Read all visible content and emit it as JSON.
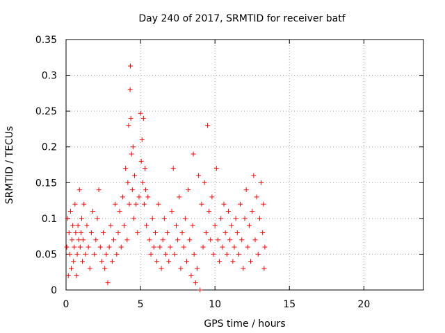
{
  "chart_data": {
    "type": "scatter",
    "title": "Day 240 of 2017, SRMTID for receiver batf",
    "xlabel": "GPS time / hours",
    "ylabel": "SRMTID / TECUs",
    "xlim": [
      0,
      24
    ],
    "ylim": [
      0,
      0.35
    ],
    "xticks": [
      0,
      5,
      10,
      15,
      20
    ],
    "xtick_labels": [
      "0",
      "5",
      "10",
      "15",
      "20"
    ],
    "yticks": [
      0,
      0.05,
      0.1,
      0.15,
      0.2,
      0.25,
      0.3,
      0.35
    ],
    "ytick_labels": [
      "0",
      "0.05",
      "0.1",
      "0.15",
      "0.2",
      "0.25",
      "0.3",
      "0.35"
    ],
    "grid": true,
    "marker": "+",
    "color": "#ff0000",
    "series": [
      {
        "name": "SRMTID",
        "points": [
          [
            0.05,
            0.06
          ],
          [
            0.1,
            0.1
          ],
          [
            0.15,
            0.02
          ],
          [
            0.2,
            0.08
          ],
          [
            0.25,
            0.05
          ],
          [
            0.3,
            0.11
          ],
          [
            0.35,
            0.03
          ],
          [
            0.4,
            0.07
          ],
          [
            0.45,
            0.09
          ],
          [
            0.5,
            0.04
          ],
          [
            0.55,
            0.06
          ],
          [
            0.6,
            0.12
          ],
          [
            0.65,
            0.08
          ],
          [
            0.7,
            0.02
          ],
          [
            0.75,
            0.05
          ],
          [
            0.8,
            0.09
          ],
          [
            0.85,
            0.07
          ],
          [
            0.9,
            0.14
          ],
          [
            0.95,
            0.06
          ],
          [
            1.0,
            0.08
          ],
          [
            1.05,
            0.1
          ],
          [
            1.1,
            0.04
          ],
          [
            1.15,
            0.07
          ],
          [
            1.2,
            0.12
          ],
          [
            1.3,
            0.05
          ],
          [
            1.4,
            0.09
          ],
          [
            1.5,
            0.06
          ],
          [
            1.6,
            0.03
          ],
          [
            1.7,
            0.08
          ],
          [
            1.8,
            0.11
          ],
          [
            1.9,
            0.05
          ],
          [
            2.0,
            0.07
          ],
          [
            2.1,
            0.1
          ],
          [
            2.2,
            0.14
          ],
          [
            2.3,
            0.06
          ],
          [
            2.4,
            0.04
          ],
          [
            2.5,
            0.08
          ],
          [
            2.6,
            0.03
          ],
          [
            2.7,
            0.05
          ],
          [
            2.8,
            0.01
          ],
          [
            2.9,
            0.06
          ],
          [
            3.0,
            0.09
          ],
          [
            3.1,
            0.04
          ],
          [
            3.2,
            0.07
          ],
          [
            3.3,
            0.12
          ],
          [
            3.4,
            0.05
          ],
          [
            3.5,
            0.08
          ],
          [
            3.6,
            0.11
          ],
          [
            3.7,
            0.06
          ],
          [
            3.8,
            0.13
          ],
          [
            3.9,
            0.09
          ],
          [
            4.0,
            0.17
          ],
          [
            4.1,
            0.07
          ],
          [
            4.15,
            0.15
          ],
          [
            4.2,
            0.23
          ],
          [
            4.25,
            0.12
          ],
          [
            4.3,
            0.28
          ],
          [
            4.32,
            0.313
          ],
          [
            4.35,
            0.24
          ],
          [
            4.4,
            0.19
          ],
          [
            4.45,
            0.14
          ],
          [
            4.5,
            0.2
          ],
          [
            4.55,
            0.1
          ],
          [
            4.6,
            0.16
          ],
          [
            4.7,
            0.12
          ],
          [
            4.8,
            0.08
          ],
          [
            4.9,
            0.13
          ],
          [
            5.0,
            0.247
          ],
          [
            5.05,
            0.18
          ],
          [
            5.1,
            0.21
          ],
          [
            5.15,
            0.15
          ],
          [
            5.2,
            0.24
          ],
          [
            5.25,
            0.12
          ],
          [
            5.3,
            0.17
          ],
          [
            5.35,
            0.14
          ],
          [
            5.4,
            0.09
          ],
          [
            5.5,
            0.13
          ],
          [
            5.6,
            0.07
          ],
          [
            5.7,
            0.05
          ],
          [
            5.8,
            0.1
          ],
          [
            5.9,
            0.06
          ],
          [
            6.0,
            0.08
          ],
          [
            6.1,
            0.04
          ],
          [
            6.2,
            0.12
          ],
          [
            6.3,
            0.06
          ],
          [
            6.4,
            0.03
          ],
          [
            6.5,
            0.07
          ],
          [
            6.6,
            0.1
          ],
          [
            6.7,
            0.05
          ],
          [
            6.8,
            0.08
          ],
          [
            6.9,
            0.04
          ],
          [
            7.0,
            0.06
          ],
          [
            7.1,
            0.11
          ],
          [
            7.2,
            0.17
          ],
          [
            7.3,
            0.05
          ],
          [
            7.4,
            0.09
          ],
          [
            7.5,
            0.07
          ],
          [
            7.6,
            0.13
          ],
          [
            7.7,
            0.03
          ],
          [
            7.8,
            0.08
          ],
          [
            7.9,
            0.06
          ],
          [
            8.0,
            0.1
          ],
          [
            8.1,
            0.04
          ],
          [
            8.2,
            0.14
          ],
          [
            8.3,
            0.07
          ],
          [
            8.4,
            0.02
          ],
          [
            8.5,
            0.09
          ],
          [
            8.55,
            0.19
          ],
          [
            8.6,
            0.05
          ],
          [
            8.7,
            0.01
          ],
          [
            8.8,
            0.03
          ],
          [
            8.9,
            0.16
          ],
          [
            9.0,
            0.0
          ],
          [
            9.1,
            0.12
          ],
          [
            9.2,
            0.06
          ],
          [
            9.3,
            0.15
          ],
          [
            9.4,
            0.08
          ],
          [
            9.5,
            0.23
          ],
          [
            9.6,
            0.11
          ],
          [
            9.7,
            0.07
          ],
          [
            9.8,
            0.13
          ],
          [
            9.9,
            0.05
          ],
          [
            10.0,
            0.09
          ],
          [
            10.1,
            0.17
          ],
          [
            10.2,
            0.07
          ],
          [
            10.3,
            0.04
          ],
          [
            10.4,
            0.1
          ],
          [
            10.5,
            0.06
          ],
          [
            10.6,
            0.12
          ],
          [
            10.7,
            0.08
          ],
          [
            10.8,
            0.05
          ],
          [
            10.9,
            0.11
          ],
          [
            11.0,
            0.07
          ],
          [
            11.1,
            0.09
          ],
          [
            11.2,
            0.04
          ],
          [
            11.3,
            0.06
          ],
          [
            11.4,
            0.1
          ],
          [
            11.5,
            0.08
          ],
          [
            11.6,
            0.05
          ],
          [
            11.7,
            0.12
          ],
          [
            11.8,
            0.07
          ],
          [
            11.9,
            0.03
          ],
          [
            12.0,
            0.1
          ],
          [
            12.1,
            0.14
          ],
          [
            12.2,
            0.06
          ],
          [
            12.3,
            0.09
          ],
          [
            12.4,
            0.04
          ],
          [
            12.5,
            0.11
          ],
          [
            12.6,
            0.16
          ],
          [
            12.7,
            0.07
          ],
          [
            12.8,
            0.13
          ],
          [
            12.9,
            0.05
          ],
          [
            13.0,
            0.1
          ],
          [
            13.1,
            0.15
          ],
          [
            13.2,
            0.08
          ],
          [
            13.25,
            0.12
          ],
          [
            13.3,
            0.03
          ],
          [
            13.35,
            0.06
          ]
        ]
      }
    ]
  }
}
